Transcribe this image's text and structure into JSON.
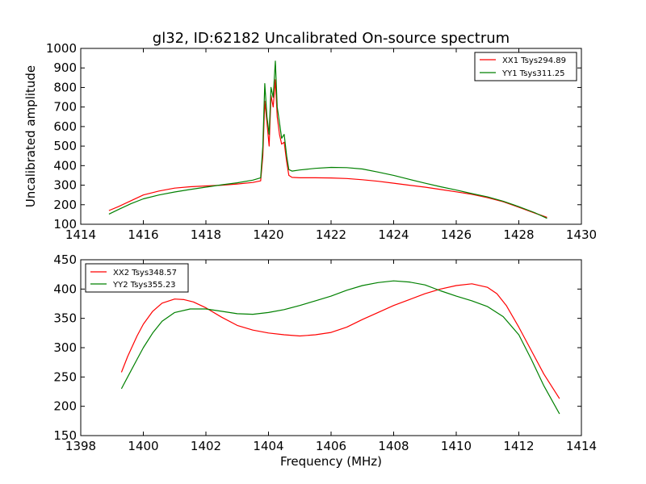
{
  "chart_data": [
    {
      "type": "line",
      "title": "gl32, ID:62182 Uncalibrated On-source spectrum",
      "xlabel": "",
      "ylabel": "Uncalibrated amplitude",
      "xlim": [
        1414,
        1430
      ],
      "ylim": [
        100,
        1000
      ],
      "xticks": [
        1414,
        1416,
        1418,
        1420,
        1422,
        1424,
        1426,
        1428,
        1430
      ],
      "yticks": [
        100,
        200,
        300,
        400,
        500,
        600,
        700,
        800,
        900,
        1000
      ],
      "legend_position": "top-right",
      "grid": false,
      "series": [
        {
          "name": "XX1 Tsys294.89",
          "color": "#ff0000",
          "x": [
            1414.9,
            1415.2,
            1415.6,
            1416.0,
            1416.5,
            1417.0,
            1417.5,
            1418.0,
            1418.5,
            1419.0,
            1419.5,
            1419.75,
            1419.82,
            1419.88,
            1419.95,
            1420.02,
            1420.08,
            1420.15,
            1420.22,
            1420.28,
            1420.35,
            1420.42,
            1420.5,
            1420.58,
            1420.65,
            1420.75,
            1421.0,
            1421.5,
            1422.0,
            1422.5,
            1423.0,
            1423.5,
            1424.0,
            1424.5,
            1425.0,
            1425.5,
            1426.0,
            1426.5,
            1427.0,
            1427.5,
            1428.0,
            1428.5,
            1428.9
          ],
          "values": [
            170,
            190,
            220,
            250,
            270,
            285,
            292,
            296,
            300,
            306,
            314,
            322,
            450,
            730,
            620,
            500,
            760,
            700,
            840,
            650,
            560,
            510,
            520,
            420,
            350,
            340,
            338,
            338,
            337,
            334,
            328,
            320,
            310,
            300,
            290,
            278,
            266,
            253,
            236,
            215,
            187,
            158,
            135
          ]
        },
        {
          "name": "YY1 Tsys311.25",
          "color": "#008000",
          "x": [
            1414.9,
            1415.2,
            1415.6,
            1416.0,
            1416.5,
            1417.0,
            1417.5,
            1418.0,
            1418.5,
            1419.0,
            1419.5,
            1419.75,
            1419.82,
            1419.88,
            1419.95,
            1420.02,
            1420.08,
            1420.15,
            1420.22,
            1420.28,
            1420.35,
            1420.42,
            1420.5,
            1420.58,
            1420.65,
            1420.75,
            1421.0,
            1421.5,
            1422.0,
            1422.5,
            1423.0,
            1423.5,
            1424.0,
            1424.5,
            1425.0,
            1425.5,
            1426.0,
            1426.5,
            1427.0,
            1427.5,
            1428.0,
            1428.5,
            1428.9
          ],
          "values": [
            152,
            175,
            205,
            230,
            250,
            265,
            278,
            290,
            302,
            312,
            326,
            338,
            500,
            820,
            650,
            560,
            800,
            750,
            935,
            700,
            620,
            540,
            560,
            450,
            380,
            372,
            378,
            386,
            391,
            390,
            383,
            367,
            350,
            330,
            310,
            292,
            275,
            257,
            240,
            218,
            190,
            160,
            130
          ]
        }
      ]
    },
    {
      "type": "line",
      "title": "",
      "xlabel": "Frequency (MHz)",
      "ylabel": "",
      "xlim": [
        1398,
        1414
      ],
      "ylim": [
        150,
        450
      ],
      "xticks": [
        1398,
        1400,
        1402,
        1404,
        1406,
        1408,
        1410,
        1412,
        1414
      ],
      "yticks": [
        150,
        200,
        250,
        300,
        350,
        400,
        450
      ],
      "legend_position": "top-left",
      "grid": false,
      "series": [
        {
          "name": "XX2 Tsys348.57",
          "color": "#ff0000",
          "x": [
            1399.3,
            1399.5,
            1399.8,
            1400.0,
            1400.3,
            1400.6,
            1401.0,
            1401.3,
            1401.6,
            1402.0,
            1402.5,
            1403.0,
            1403.5,
            1404.0,
            1404.5,
            1405.0,
            1405.5,
            1406.0,
            1406.5,
            1407.0,
            1407.5,
            1408.0,
            1408.5,
            1409.0,
            1409.5,
            1410.0,
            1410.5,
            1411.0,
            1411.3,
            1411.6,
            1412.0,
            1412.4,
            1412.8,
            1413.3
          ],
          "values": [
            258,
            285,
            320,
            340,
            362,
            376,
            383,
            382,
            378,
            368,
            352,
            338,
            330,
            325,
            322,
            320,
            322,
            326,
            335,
            348,
            360,
            372,
            382,
            392,
            400,
            406,
            409,
            403,
            392,
            372,
            335,
            295,
            255,
            213
          ]
        },
        {
          "name": "YY2 Tsys355.23",
          "color": "#008000",
          "x": [
            1399.3,
            1399.5,
            1399.8,
            1400.0,
            1400.3,
            1400.6,
            1401.0,
            1401.5,
            1402.0,
            1402.5,
            1403.0,
            1403.5,
            1404.0,
            1404.5,
            1405.0,
            1405.5,
            1406.0,
            1406.5,
            1407.0,
            1407.5,
            1408.0,
            1408.5,
            1409.0,
            1409.5,
            1410.0,
            1410.5,
            1411.0,
            1411.5,
            1412.0,
            1412.4,
            1412.8,
            1413.3
          ],
          "values": [
            230,
            250,
            280,
            300,
            325,
            345,
            360,
            366,
            366,
            362,
            358,
            357,
            360,
            365,
            372,
            380,
            388,
            398,
            406,
            411,
            414,
            412,
            407,
            397,
            388,
            380,
            370,
            353,
            322,
            280,
            235,
            187
          ]
        }
      ]
    }
  ]
}
